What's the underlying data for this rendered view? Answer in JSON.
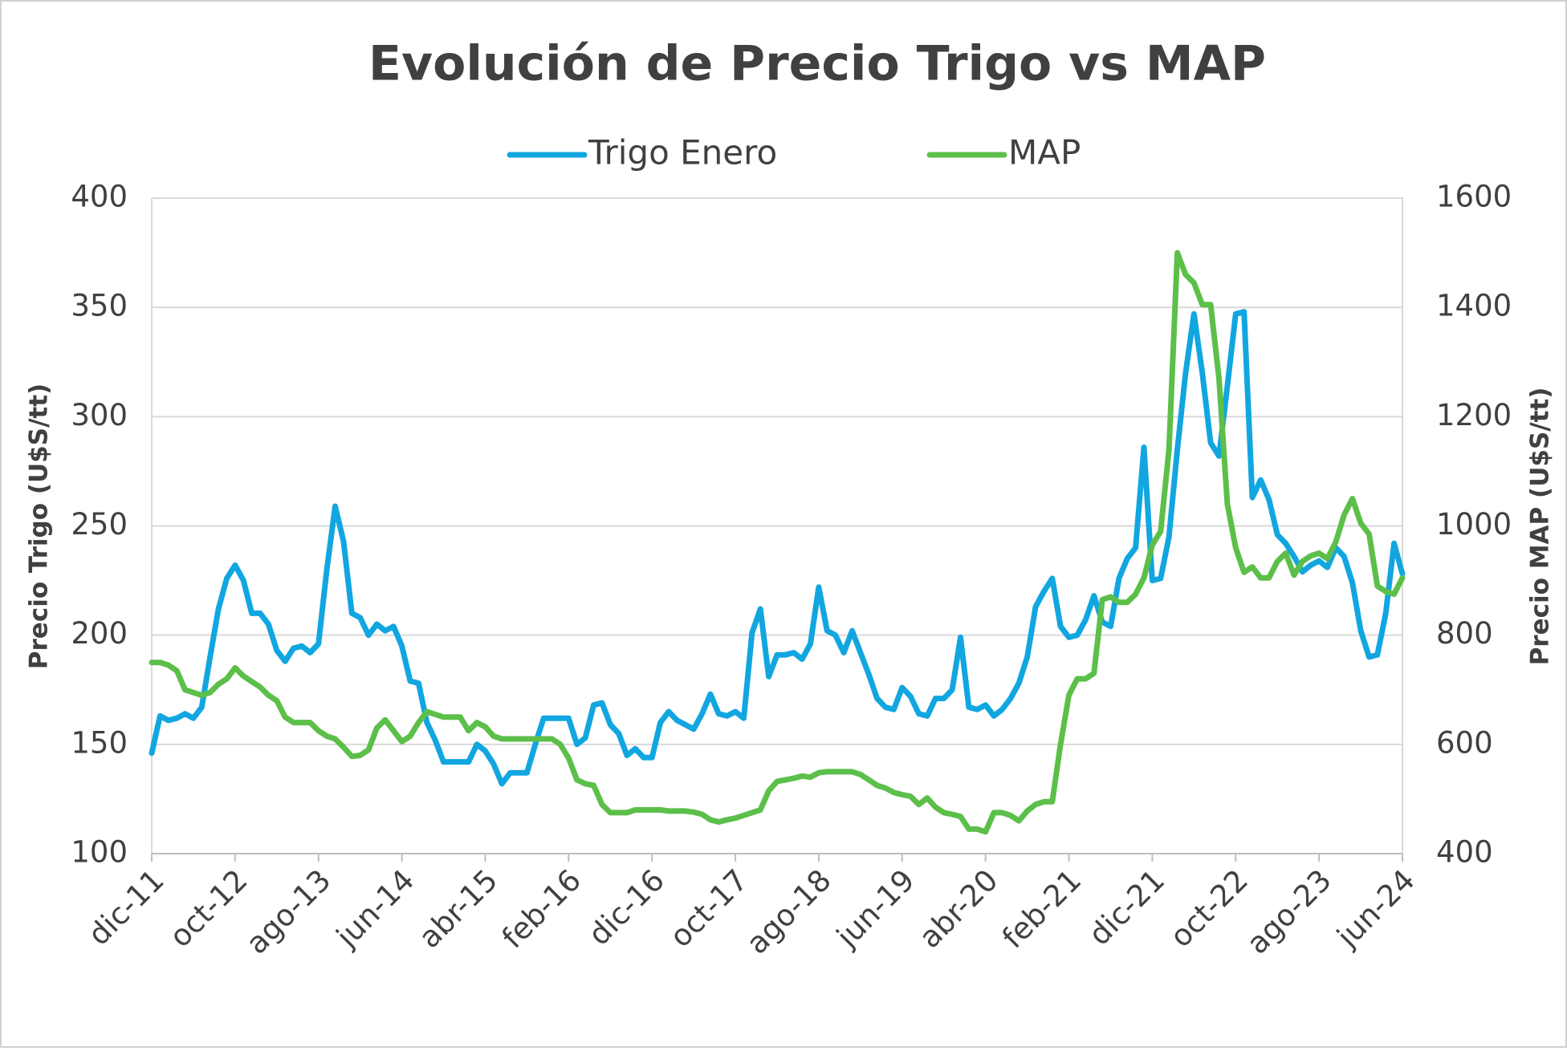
{
  "chart_data": {
    "type": "line",
    "title": "Evolución de Precio Trigo vs MAP",
    "y_label": "Precio Trigo (U$S/tt)",
    "y2_label": "Precio MAP (U$S/tt)",
    "categories": [
      "dic-11",
      null,
      null,
      null,
      null,
      null,
      null,
      null,
      null,
      null,
      "oct-12",
      null,
      null,
      null,
      null,
      null,
      null,
      null,
      null,
      null,
      "ago-13",
      null,
      null,
      null,
      null,
      null,
      null,
      null,
      null,
      null,
      "jun-14",
      null,
      null,
      null,
      null,
      null,
      null,
      null,
      null,
      null,
      "abr-15",
      null,
      null,
      null,
      null,
      null,
      null,
      null,
      null,
      null,
      "feb-16",
      null,
      null,
      null,
      null,
      null,
      null,
      null,
      null,
      null,
      "dic-16",
      null,
      null,
      null,
      null,
      null,
      null,
      null,
      null,
      null,
      "oct-17",
      null,
      null,
      null,
      null,
      null,
      null,
      null,
      null,
      null,
      "ago-18",
      null,
      null,
      null,
      null,
      null,
      null,
      null,
      null,
      null,
      "jun-19",
      null,
      null,
      null,
      null,
      null,
      null,
      null,
      null,
      null,
      "abr-20",
      null,
      null,
      null,
      null,
      null,
      null,
      null,
      null,
      null,
      "feb-21",
      null,
      null,
      null,
      null,
      null,
      null,
      null,
      null,
      null,
      "dic-21",
      null,
      null,
      null,
      null,
      null,
      null,
      null,
      null,
      null,
      "oct-22",
      null,
      null,
      null,
      null,
      null,
      null,
      null,
      null,
      null,
      "ago-23",
      null,
      null,
      null,
      null,
      null,
      null,
      null,
      null,
      null,
      "jun-24"
    ],
    "series": [
      {
        "name": "Trigo Enero",
        "color": "#12a6e0",
        "axis": "y",
        "values": [
          146,
          163,
          161,
          162,
          164,
          162,
          167,
          190,
          212,
          226,
          232,
          225,
          210,
          210,
          205,
          193,
          188,
          194,
          195,
          192,
          196,
          230,
          259,
          243,
          210,
          208,
          200,
          205,
          202,
          204,
          195,
          179,
          178,
          160,
          152,
          142,
          142,
          142,
          142,
          150,
          147,
          141,
          132,
          137,
          137,
          137,
          150,
          162,
          162,
          162,
          162,
          150,
          153,
          168,
          169,
          159,
          155,
          145,
          148,
          144,
          144,
          160,
          165,
          161,
          159,
          157,
          164,
          173,
          164,
          163,
          165,
          162,
          201,
          212,
          181,
          191,
          191,
          192,
          189,
          196,
          222,
          202,
          200,
          192,
          202,
          192,
          182,
          171,
          167,
          166,
          176,
          172,
          164,
          163,
          171,
          171,
          175,
          199,
          167,
          166,
          168,
          163,
          166,
          171,
          178,
          190,
          213,
          220,
          226,
          204,
          199,
          200,
          207,
          218,
          206,
          204,
          226,
          235,
          240,
          286,
          225,
          226,
          245,
          285,
          320,
          347,
          320,
          288,
          282,
          314,
          347,
          348,
          263,
          271,
          262,
          246,
          242,
          236,
          229,
          232,
          234,
          231,
          240,
          236,
          224,
          202,
          190,
          191,
          210,
          242,
          228
        ]
      },
      {
        "name": "MAP",
        "color": "#5cbf4a",
        "axis": "y2",
        "values": [
          750,
          750,
          745,
          735,
          700,
          695,
          690,
          695,
          710,
          720,
          740,
          725,
          715,
          705,
          690,
          680,
          650,
          640,
          640,
          640,
          625,
          615,
          610,
          595,
          578,
          580,
          590,
          630,
          645,
          625,
          605,
          615,
          640,
          660,
          655,
          650,
          650,
          650,
          625,
          640,
          632,
          615,
          610,
          610,
          610,
          610,
          610,
          610,
          610,
          600,
          575,
          535,
          528,
          525,
          490,
          475,
          475,
          475,
          480,
          480,
          480,
          480,
          478,
          478,
          478,
          476,
          472,
          462,
          458,
          462,
          465,
          470,
          475,
          480,
          515,
          532,
          535,
          538,
          542,
          540,
          548,
          550,
          550,
          550,
          550,
          545,
          535,
          525,
          520,
          512,
          508,
          505,
          490,
          502,
          485,
          475,
          472,
          468,
          445,
          445,
          440,
          475,
          475,
          470,
          460,
          478,
          490,
          495,
          495,
          600,
          690,
          720,
          720,
          730,
          865,
          870,
          860,
          860,
          875,
          905,
          965,
          990,
          1140,
          1500,
          1460,
          1445,
          1405,
          1405,
          1270,
          1040,
          960,
          915,
          925,
          905,
          905,
          935,
          950,
          910,
          935,
          945,
          950,
          940,
          970,
          1020,
          1050,
          1005,
          985,
          890,
          880,
          875,
          905
        ]
      }
    ],
    "ylim": [
      100,
      400
    ],
    "yticks": [
      100,
      150,
      200,
      250,
      300,
      350,
      400
    ],
    "y2lim": [
      400,
      1600
    ],
    "y2ticks": [
      400,
      600,
      800,
      1000,
      1200,
      1400,
      1600
    ],
    "grid": true,
    "legend": "top"
  }
}
